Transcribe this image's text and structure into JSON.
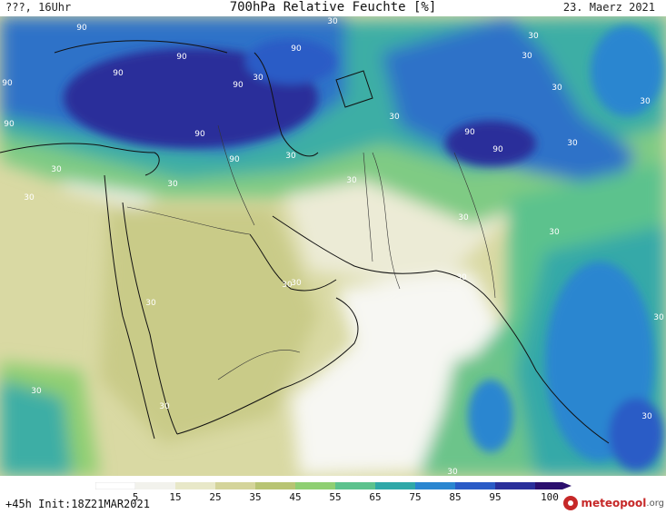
{
  "header": {
    "left": "???, 16Uhr",
    "title": "700hPa Relative Feuchte [%]",
    "date": "23. Maerz 2021"
  },
  "footer": {
    "run_info": "+45h Init:18Z21MAR2021"
  },
  "logo": {
    "brand": "meteopool",
    "tld": ".org"
  },
  "legend": {
    "ticks": [
      "5",
      "15",
      "25",
      "35",
      "45",
      "55",
      "65",
      "75",
      "85",
      "95",
      "100"
    ],
    "colors": [
      "#ffffff",
      "#f2f2ec",
      "#e8e8c8",
      "#d4d49a",
      "#b8c473",
      "#8fcf72",
      "#5cc28d",
      "#2fa8a8",
      "#2a86d0",
      "#2a5bc6",
      "#2a2f9a",
      "#2b0f6e"
    ]
  },
  "contour_labels": [
    "90",
    "90",
    "90",
    "90",
    "90",
    "90",
    "90",
    "90",
    "90",
    "90",
    "90",
    "30",
    "30",
    "30",
    "30",
    "30",
    "30",
    "30",
    "30",
    "30",
    "30",
    "30",
    "30",
    "30",
    "30",
    "30",
    "30",
    "30",
    "30",
    "30",
    "30",
    "30",
    "30",
    "30",
    "30"
  ]
}
